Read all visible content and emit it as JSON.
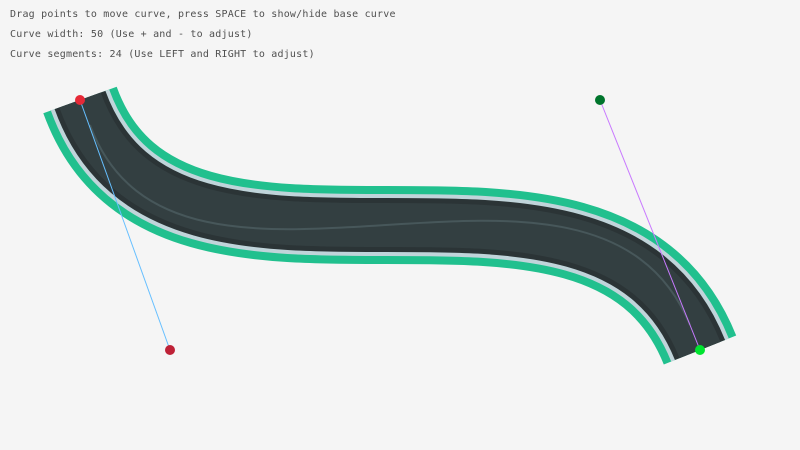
{
  "instructions": {
    "drag_hint": "Drag points to move curve, press SPACE to show/hide base curve",
    "curve_width": "Curve width: 50 (Use + and - to adjust)",
    "curve_segments": "Curve segments: 24 (Use LEFT and RIGHT to adjust)"
  },
  "curve": {
    "width": 50,
    "segments": 24,
    "colors": {
      "border": "#21c08e",
      "edge": "#c0d4da",
      "road_edge": "#2b3436",
      "road": "#333f41",
      "center_line": "#47575a",
      "start_point": "#e62937",
      "start_handle": "#be2137",
      "end_point": "#00e430",
      "end_handle": "#00752c",
      "start_tangent_line": "#66bfff",
      "end_tangent_line": "#c87aff"
    }
  }
}
